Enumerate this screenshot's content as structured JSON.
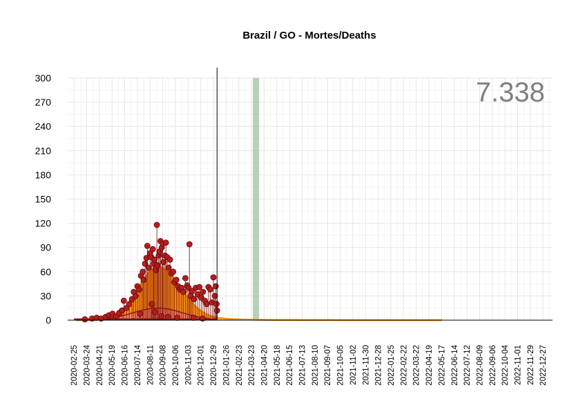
{
  "chart_data": {
    "type": "bar",
    "title": "Brazil / GO - Mortes/Deaths",
    "annotation": "7.338",
    "xlabel": "",
    "ylabel": "",
    "ylim": [
      0,
      300
    ],
    "yticks": [
      0,
      30,
      60,
      90,
      120,
      150,
      180,
      210,
      240,
      270,
      300
    ],
    "xlim": [
      "2020-02-11",
      "2023-01-17"
    ],
    "xticks": [
      "2020-02-25",
      "2020-03-24",
      "2020-04-21",
      "2020-05-19",
      "2020-06-16",
      "2020-07-14",
      "2020-08-11",
      "2020-09-08",
      "2020-10-06",
      "2020-11-03",
      "2020-12-01",
      "2020-12-29",
      "2021-01-26",
      "2021-02-23",
      "2021-03-23",
      "2021-04-20",
      "2021-05-18",
      "2021-06-15",
      "2021-07-13",
      "2021-08-10",
      "2021-09-07",
      "2021-10-05",
      "2021-11-02",
      "2021-11-30",
      "2021-12-28",
      "2022-01-25",
      "2022-02-22",
      "2022-03-22",
      "2022-04-19",
      "2022-05-17",
      "2022-06-14",
      "2022-07-12",
      "2022-08-09",
      "2022-09-06",
      "2022-10-04",
      "2022-11-01",
      "2022-11-29",
      "2022-12-27"
    ],
    "grid": true,
    "last_observed_date": "2021-01-06",
    "highlight_band": {
      "start": "2021-03-26",
      "end": "2021-04-09",
      "color": "#9dc49f"
    },
    "fitted_curve": {
      "name": "",
      "color": "#ff8c00",
      "end_date": "2022-05-18",
      "peak_date": "2020-08-28",
      "peak_value": 66,
      "shape": "bell, sd ~45 days, long right tail"
    },
    "lower_curve": {
      "color": "#e8799c",
      "peak_date": "2020-08-28",
      "peak_value": 15
    },
    "series": [
      {
        "name": "",
        "type": "points",
        "color": "#b71c1c",
        "points": [
          [
            "2020-03-20",
            1
          ],
          [
            "2020-04-05",
            2
          ],
          [
            "2020-04-15",
            3
          ],
          [
            "2020-04-25",
            2
          ],
          [
            "2020-05-05",
            4
          ],
          [
            "2020-05-12",
            6
          ],
          [
            "2020-05-20",
            8
          ],
          [
            "2020-05-28",
            5
          ],
          [
            "2020-06-04",
            9
          ],
          [
            "2020-06-10",
            12
          ],
          [
            "2020-06-14",
            24
          ],
          [
            "2020-06-20",
            15
          ],
          [
            "2020-06-26",
            20
          ],
          [
            "2020-07-02",
            26
          ],
          [
            "2020-07-06",
            35
          ],
          [
            "2020-07-10",
            30
          ],
          [
            "2020-07-14",
            42
          ],
          [
            "2020-07-18",
            38
          ],
          [
            "2020-07-22",
            55
          ],
          [
            "2020-07-26",
            60
          ],
          [
            "2020-07-28",
            50
          ],
          [
            "2020-07-31",
            70
          ],
          [
            "2020-08-03",
            77
          ],
          [
            "2020-08-05",
            92
          ],
          [
            "2020-08-08",
            65
          ],
          [
            "2020-08-11",
            83
          ],
          [
            "2020-08-14",
            78
          ],
          [
            "2020-08-17",
            88
          ],
          [
            "2020-08-19",
            70
          ],
          [
            "2020-08-21",
            75
          ],
          [
            "2020-08-24",
            62
          ],
          [
            "2020-08-26",
            118
          ],
          [
            "2020-08-28",
            68
          ],
          [
            "2020-08-30",
            80
          ],
          [
            "2020-09-01",
            85
          ],
          [
            "2020-09-03",
            98
          ],
          [
            "2020-09-06",
            90
          ],
          [
            "2020-09-08",
            95
          ],
          [
            "2020-09-10",
            72
          ],
          [
            "2020-09-13",
            80
          ],
          [
            "2020-09-15",
            96
          ],
          [
            "2020-09-18",
            78
          ],
          [
            "2020-09-21",
            65
          ],
          [
            "2020-09-24",
            75
          ],
          [
            "2020-09-27",
            58
          ],
          [
            "2020-10-01",
            60
          ],
          [
            "2020-10-04",
            47
          ],
          [
            "2020-10-08",
            50
          ],
          [
            "2020-10-12",
            42
          ],
          [
            "2020-10-16",
            38
          ],
          [
            "2020-10-20",
            40
          ],
          [
            "2020-10-24",
            35
          ],
          [
            "2020-10-28",
            52
          ],
          [
            "2020-11-01",
            43
          ],
          [
            "2020-11-04",
            40
          ],
          [
            "2020-11-06",
            94
          ],
          [
            "2020-11-09",
            30
          ],
          [
            "2020-11-12",
            36
          ],
          [
            "2020-11-16",
            26
          ],
          [
            "2020-11-20",
            40
          ],
          [
            "2020-11-24",
            32
          ],
          [
            "2020-11-28",
            41
          ],
          [
            "2020-12-02",
            28
          ],
          [
            "2020-12-06",
            35
          ],
          [
            "2020-12-10",
            24
          ],
          [
            "2020-12-14",
            20
          ],
          [
            "2020-12-18",
            41
          ],
          [
            "2020-12-22",
            38
          ],
          [
            "2020-12-26",
            22
          ],
          [
            "2020-12-29",
            53
          ],
          [
            "2021-01-01",
            30
          ],
          [
            "2021-01-03",
            42
          ],
          [
            "2021-01-05",
            20
          ],
          [
            "2021-01-06",
            12
          ],
          [
            "2020-08-15",
            20
          ],
          [
            "2020-08-22",
            10
          ],
          [
            "2020-09-05",
            5
          ],
          [
            "2020-09-20",
            4
          ],
          [
            "2020-10-10",
            3
          ],
          [
            "2020-11-15",
            3
          ],
          [
            "2020-12-05",
            2
          ],
          [
            "2020-07-20",
            8
          ]
        ]
      }
    ]
  }
}
